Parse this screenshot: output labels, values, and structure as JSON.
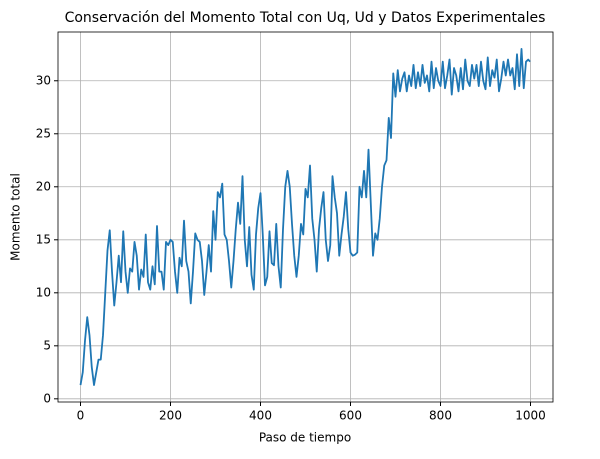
{
  "chart_data": {
    "type": "line",
    "title": "Conservación del Momento Total con Uq, Ud y Datos Experimentales",
    "xlabel": "Paso de tiempo",
    "ylabel": "Momento total",
    "color": "#1f77b4",
    "grid": true,
    "xlim": [
      -50,
      1050
    ],
    "ylim": [
      -0.3,
      34.6
    ],
    "xticks": [
      0,
      200,
      400,
      600,
      800,
      1000
    ],
    "yticks": [
      0,
      5,
      10,
      15,
      20,
      25,
      30
    ],
    "x": [
      0,
      5,
      10,
      15,
      20,
      25,
      30,
      35,
      40,
      45,
      50,
      55,
      60,
      65,
      70,
      75,
      80,
      85,
      90,
      95,
      100,
      105,
      110,
      115,
      120,
      125,
      130,
      135,
      140,
      145,
      150,
      155,
      160,
      165,
      170,
      175,
      180,
      185,
      190,
      195,
      200,
      205,
      210,
      215,
      220,
      225,
      230,
      235,
      240,
      245,
      250,
      255,
      260,
      265,
      270,
      275,
      280,
      285,
      290,
      295,
      300,
      305,
      310,
      315,
      320,
      325,
      330,
      335,
      340,
      345,
      350,
      355,
      360,
      365,
      370,
      375,
      380,
      385,
      390,
      395,
      400,
      405,
      410,
      415,
      420,
      425,
      430,
      435,
      440,
      445,
      450,
      455,
      460,
      465,
      470,
      475,
      480,
      485,
      490,
      495,
      500,
      505,
      510,
      515,
      520,
      525,
      530,
      535,
      540,
      545,
      550,
      555,
      560,
      565,
      570,
      575,
      580,
      585,
      590,
      595,
      600,
      605,
      610,
      615,
      620,
      625,
      630,
      635,
      640,
      645,
      650,
      655,
      660,
      665,
      670,
      675,
      680,
      685,
      690,
      695,
      700,
      705,
      710,
      715,
      720,
      725,
      730,
      735,
      740,
      745,
      750,
      755,
      760,
      765,
      770,
      775,
      780,
      785,
      790,
      795,
      800,
      805,
      810,
      815,
      820,
      825,
      830,
      835,
      840,
      845,
      850,
      855,
      860,
      865,
      870,
      875,
      880,
      885,
      890,
      895,
      900,
      905,
      910,
      915,
      920,
      925,
      930,
      935,
      940,
      945,
      950,
      955,
      960,
      965,
      970,
      975,
      980,
      985,
      990,
      995,
      999
    ],
    "values": [
      1.3,
      2.5,
      5.5,
      7.7,
      6,
      3,
      1.3,
      2.5,
      3.7,
      3.7,
      6,
      10,
      14,
      15.9,
      12,
      8.8,
      11,
      13.5,
      11,
      15.8,
      12,
      10,
      12.3,
      12,
      14.8,
      13.5,
      10.3,
      12.2,
      11.5,
      15.5,
      11,
      10.3,
      12.5,
      10.8,
      16.3,
      12,
      12,
      10.3,
      14.8,
      14.5,
      15,
      14.8,
      12,
      10,
      13.3,
      12.5,
      16.8,
      13,
      12,
      9,
      12,
      15.6,
      15,
      14.8,
      13,
      9.8,
      12,
      14.5,
      12,
      17.7,
      15,
      19.5,
      19,
      20.3,
      15.5,
      15,
      13,
      10.5,
      13,
      16,
      18.5,
      16.5,
      21,
      15,
      12.5,
      16.2,
      11.7,
      10.3,
      15.5,
      18,
      19.4,
      15.5,
      10.7,
      11.5,
      15.8,
      12.8,
      12.6,
      16.5,
      12.5,
      10.5,
      16,
      20,
      21.5,
      20,
      16.5,
      13.5,
      11.5,
      13.5,
      16.5,
      15.5,
      19.8,
      19,
      22,
      17,
      15,
      12,
      16,
      18,
      19.5,
      15,
      13,
      14.5,
      21,
      19,
      17.5,
      13.5,
      15.5,
      17.2,
      19.5,
      16,
      13.8,
      13.5,
      13.6,
      13.8,
      20,
      19,
      21.5,
      19,
      23.5,
      18.5,
      13.5,
      15.6,
      15,
      17,
      20,
      22,
      22.5,
      26.5,
      24.6,
      30.7,
      28.5,
      31,
      29,
      30.2,
      30.8,
      29,
      30.5,
      29.5,
      31.5,
      29.3,
      30.8,
      29.5,
      31.5,
      29.8,
      30.5,
      29,
      31.8,
      29.3,
      31.2,
      30,
      29.5,
      31.8,
      29.3,
      30.5,
      32,
      28.7,
      31.2,
      30.5,
      29,
      31.2,
      29.2,
      32,
      30,
      29.5,
      31.5,
      30.2,
      31.5,
      29.5,
      31.8,
      30,
      29.2,
      32.2,
      29.5,
      31,
      30.3,
      32,
      29,
      30.2,
      31.8,
      30.5,
      32,
      30.5,
      31.2,
      29.2,
      32.5,
      29.5,
      33,
      29.3,
      31.8,
      32,
      31.8
    ]
  }
}
